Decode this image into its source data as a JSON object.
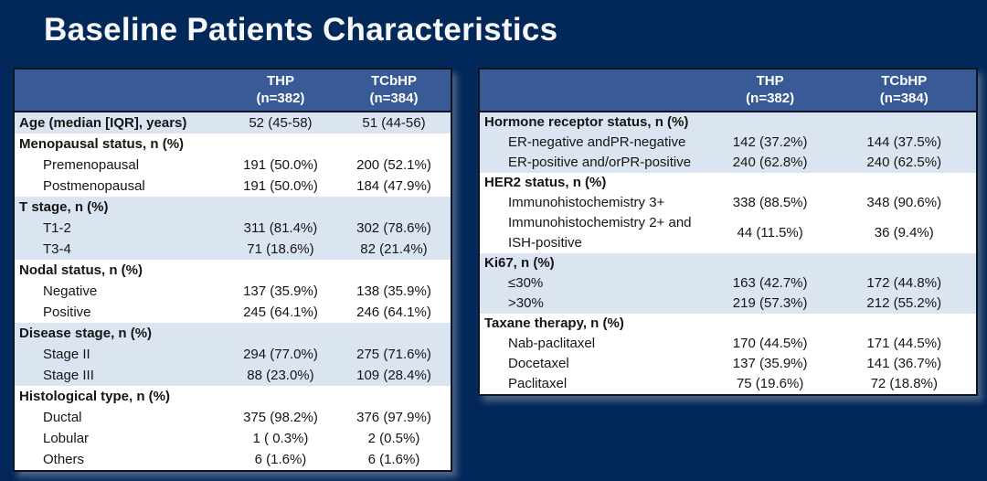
{
  "title": "Baseline Patients Characteristics",
  "colors": {
    "background": "#02285a",
    "table_header_bg": "#385a96",
    "row_shaded": "#dbe4f1",
    "row_plain": "#ffffff",
    "header_text": "#ffffff",
    "body_text": "#151515"
  },
  "tables": [
    {
      "name": "left",
      "columns": [
        {
          "name": "THP",
          "sub": "(n=382)"
        },
        {
          "name": "TCbHP",
          "sub": "(n=384)"
        }
      ],
      "groups": [
        {
          "shaded": true,
          "rows": [
            {
              "label": "Age (median [IQR], years)",
              "header": true,
              "thp": "52 (45-58)",
              "tcbhp": "51 (44-56)"
            }
          ]
        },
        {
          "shaded": false,
          "rows": [
            {
              "label": "Menopausal status, n (%)",
              "header": true,
              "thp": "",
              "tcbhp": ""
            },
            {
              "label": "Premenopausal",
              "thp": "191 (50.0%)",
              "tcbhp": "200 (52.1%)"
            },
            {
              "label": "Postmenopausal",
              "thp": "191 (50.0%)",
              "tcbhp": "184 (47.9%)"
            }
          ]
        },
        {
          "shaded": true,
          "rows": [
            {
              "label": "T stage, n (%)",
              "header": true,
              "thp": "",
              "tcbhp": ""
            },
            {
              "label": "T1-2",
              "thp": "311 (81.4%)",
              "tcbhp": "302 (78.6%)"
            },
            {
              "label": "T3-4",
              "thp": "71 (18.6%)",
              "tcbhp": "82 (21.4%)"
            }
          ]
        },
        {
          "shaded": false,
          "rows": [
            {
              "label": "Nodal status, n (%)",
              "header": true,
              "thp": "",
              "tcbhp": ""
            },
            {
              "label": "Negative",
              "thp": "137 (35.9%)",
              "tcbhp": "138 (35.9%)"
            },
            {
              "label": "Positive",
              "thp": "245 (64.1%)",
              "tcbhp": "246 (64.1%)"
            }
          ]
        },
        {
          "shaded": true,
          "rows": [
            {
              "label": "Disease stage, n (%)",
              "header": true,
              "thp": "",
              "tcbhp": ""
            },
            {
              "label": "Stage II",
              "thp": "294 (77.0%)",
              "tcbhp": "275 (71.6%)"
            },
            {
              "label": "Stage III",
              "thp": "88 (23.0%)",
              "tcbhp": "109 (28.4%)"
            }
          ]
        },
        {
          "shaded": false,
          "rows": [
            {
              "label": "Histological type, n (%)",
              "header": true,
              "thp": "",
              "tcbhp": ""
            },
            {
              "label": "Ductal",
              "thp": "375 (98.2%)",
              "tcbhp": "376 (97.9%)"
            },
            {
              "label": "Lobular",
              "thp": "1 ( 0.3%)",
              "tcbhp": "2 (0.5%)"
            },
            {
              "label": "Others",
              "thp": "6 (1.6%)",
              "tcbhp": "6 (1.6%)"
            }
          ]
        }
      ]
    },
    {
      "name": "right",
      "columns": [
        {
          "name": "THP",
          "sub": "(n=382)"
        },
        {
          "name": "TCbHP",
          "sub": "(n=384)"
        }
      ],
      "groups": [
        {
          "shaded": true,
          "rows": [
            {
              "label": "Hormone receptor status, n (%)",
              "header": true,
              "thp": "",
              "tcbhp": ""
            },
            {
              "label": "ER-negative andPR-negative",
              "thp": "142 (37.2%)",
              "tcbhp": "144 (37.5%)"
            },
            {
              "label": "ER-positive and/orPR-positive",
              "thp": "240 (62.8%)",
              "tcbhp": "240 (62.5%)"
            }
          ]
        },
        {
          "shaded": false,
          "rows": [
            {
              "label": "HER2 status, n (%)",
              "header": true,
              "thp": "",
              "tcbhp": ""
            },
            {
              "label": "Immunohistochemistry 3+",
              "thp": "338 (88.5%)",
              "tcbhp": "348 (90.6%)"
            },
            {
              "label": "Immunohistochemistry 2+ and ISH-positive",
              "thp": "44 (11.5%)",
              "tcbhp": "36 (9.4%)"
            }
          ]
        },
        {
          "shaded": true,
          "rows": [
            {
              "label": "Ki67, n (%)",
              "header": true,
              "thp": "",
              "tcbhp": ""
            },
            {
              "label": "≤30%",
              "thp": "163 (42.7%)",
              "tcbhp": "172 (44.8%)"
            },
            {
              "label": ">30%",
              "thp": "219 (57.3%)",
              "tcbhp": "212 (55.2%)"
            }
          ]
        },
        {
          "shaded": false,
          "rows": [
            {
              "label": "Taxane therapy, n (%)",
              "header": true,
              "thp": "",
              "tcbhp": ""
            },
            {
              "label": "Nab-paclitaxel",
              "thp": "170 (44.5%)",
              "tcbhp": "171 (44.5%)"
            },
            {
              "label": "Docetaxel",
              "thp": "137 (35.9%)",
              "tcbhp": "141 (36.7%)"
            },
            {
              "label": "Paclitaxel",
              "thp": "75 (19.6%)",
              "tcbhp": "72 (18.8%)"
            }
          ]
        }
      ]
    }
  ]
}
